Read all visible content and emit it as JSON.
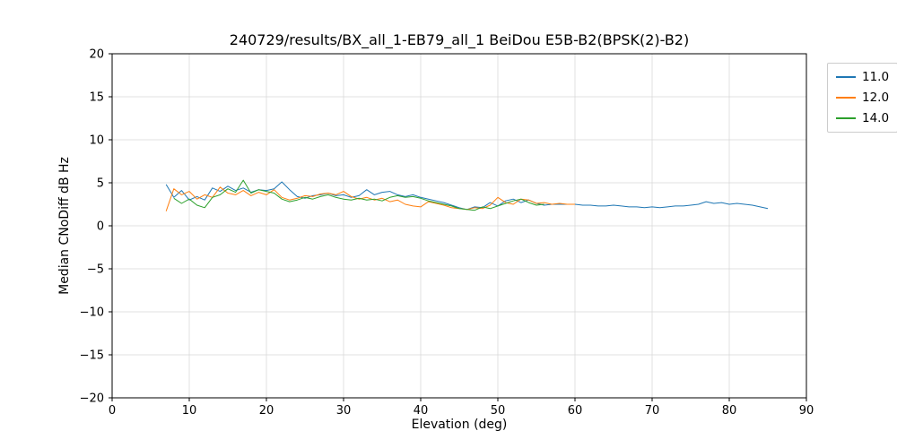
{
  "chart_data": {
    "type": "line",
    "title": "240729/results/BX_all_1-EB79_all_1 BeiDou E5B-B2(BPSK(2)-B2)",
    "xlabel": "Elevation (deg)",
    "ylabel": "Median CNoDiff dB Hz",
    "xlim": [
      0,
      90
    ],
    "ylim": [
      -20,
      20
    ],
    "xticks": [
      0,
      10,
      20,
      30,
      40,
      50,
      60,
      70,
      80,
      90
    ],
    "yticks": [
      -20,
      -15,
      -10,
      -5,
      0,
      5,
      10,
      15,
      20
    ],
    "grid": true,
    "grid_color": "#d9d9d9",
    "legend_position": "outside upper right",
    "series": [
      {
        "name": "11.0",
        "color": "#1f77b4",
        "x": [
          7,
          8,
          9,
          10,
          11,
          12,
          13,
          14,
          15,
          16,
          17,
          18,
          19,
          20,
          21,
          22,
          23,
          24,
          25,
          26,
          27,
          28,
          29,
          30,
          31,
          32,
          33,
          34,
          35,
          36,
          37,
          38,
          39,
          40,
          41,
          42,
          43,
          44,
          45,
          46,
          47,
          48,
          49,
          50,
          51,
          52,
          53,
          54,
          55,
          56,
          57,
          58,
          59,
          60,
          61,
          62,
          63,
          64,
          65,
          66,
          67,
          68,
          69,
          70,
          71,
          72,
          73,
          74,
          75,
          76,
          77,
          78,
          79,
          80,
          81,
          82,
          83,
          84,
          85
        ],
        "y": [
          4.8,
          3.3,
          4.1,
          3.0,
          3.4,
          3.0,
          4.4,
          4.0,
          4.6,
          4.1,
          4.4,
          3.9,
          4.2,
          4.1,
          4.3,
          5.1,
          4.2,
          3.4,
          3.2,
          3.5,
          3.6,
          3.8,
          3.5,
          3.6,
          3.3,
          3.5,
          4.2,
          3.6,
          3.9,
          4.0,
          3.6,
          3.4,
          3.6,
          3.3,
          3.1,
          2.9,
          2.7,
          2.4,
          2.1,
          1.9,
          2.2,
          2.1,
          2.7,
          2.3,
          2.9,
          3.1,
          2.7,
          3.0,
          2.6,
          2.4,
          2.5,
          2.5,
          2.5,
          2.5,
          2.4,
          2.4,
          2.3,
          2.3,
          2.4,
          2.3,
          2.2,
          2.2,
          2.1,
          2.2,
          2.1,
          2.2,
          2.3,
          2.3,
          2.4,
          2.5,
          2.8,
          2.6,
          2.7,
          2.5,
          2.6,
          2.5,
          2.4,
          2.2,
          2.0
        ]
      },
      {
        "name": "12.0",
        "color": "#ff7f0e",
        "x": [
          7,
          8,
          9,
          10,
          11,
          12,
          13,
          14,
          15,
          16,
          17,
          18,
          19,
          20,
          21,
          22,
          23,
          24,
          25,
          26,
          27,
          28,
          29,
          30,
          31,
          32,
          33,
          34,
          35,
          36,
          37,
          38,
          39,
          40,
          41,
          42,
          43,
          44,
          45,
          46,
          47,
          48,
          49,
          50,
          51,
          52,
          53,
          54,
          55,
          56,
          57,
          58,
          59,
          60
        ],
        "y": [
          1.7,
          4.3,
          3.6,
          4.0,
          3.1,
          3.6,
          3.3,
          4.5,
          3.8,
          3.6,
          4.1,
          3.5,
          3.9,
          3.6,
          4.2,
          3.3,
          3.0,
          3.2,
          3.5,
          3.4,
          3.7,
          3.8,
          3.6,
          4.0,
          3.4,
          3.1,
          3.3,
          3.0,
          3.2,
          2.8,
          3.0,
          2.5,
          2.3,
          2.2,
          2.8,
          2.6,
          2.4,
          2.1,
          2.0,
          1.9,
          2.1,
          2.0,
          2.4,
          3.3,
          2.7,
          2.5,
          3.1,
          3.0,
          2.6,
          2.7,
          2.5,
          2.6,
          2.5,
          2.5
        ]
      },
      {
        "name": "14.0",
        "color": "#2ca02c",
        "x": [
          8,
          9,
          10,
          11,
          12,
          13,
          14,
          15,
          16,
          17,
          18,
          19,
          20,
          21,
          22,
          23,
          24,
          25,
          26,
          27,
          28,
          29,
          30,
          31,
          32,
          33,
          34,
          35,
          36,
          37,
          38,
          39,
          40,
          41,
          42,
          43,
          44,
          45,
          46,
          47,
          48,
          49,
          50,
          51,
          52,
          53,
          54,
          55,
          56
        ],
        "y": [
          3.2,
          2.6,
          3.1,
          2.4,
          2.1,
          3.3,
          3.6,
          4.3,
          3.9,
          5.3,
          3.8,
          4.2,
          4.0,
          3.8,
          3.1,
          2.8,
          3.0,
          3.3,
          3.1,
          3.4,
          3.6,
          3.3,
          3.1,
          3.0,
          3.2,
          3.0,
          3.1,
          2.9,
          3.3,
          3.5,
          3.3,
          3.4,
          3.2,
          2.9,
          2.7,
          2.5,
          2.3,
          2.0,
          1.9,
          1.8,
          2.2,
          2.0,
          2.3,
          2.6,
          2.9,
          3.1,
          2.7,
          2.4,
          2.5
        ]
      }
    ]
  }
}
